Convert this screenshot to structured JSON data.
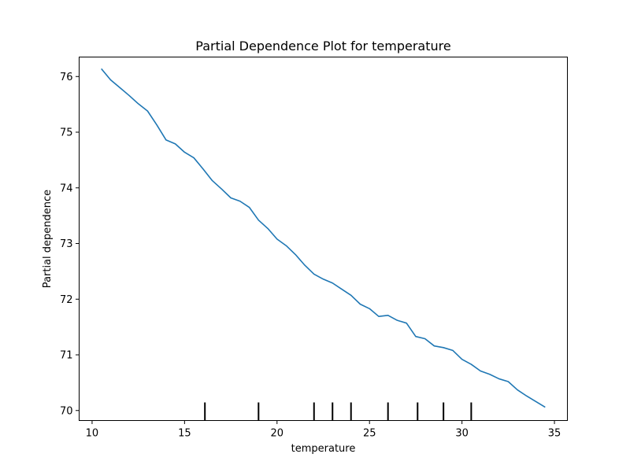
{
  "chart_data": {
    "type": "line",
    "title": "Partial Dependence Plot for temperature",
    "xlabel": "temperature",
    "ylabel": "Partial dependence",
    "xlim": [
      9.3,
      35.7
    ],
    "ylim": [
      69.82,
      76.35
    ],
    "x_ticks": [
      10,
      15,
      20,
      25,
      30,
      35
    ],
    "y_ticks": [
      70,
      71,
      72,
      73,
      74,
      75,
      76
    ],
    "x_tick_labels": [
      "10",
      "15",
      "20",
      "25",
      "30",
      "35"
    ],
    "y_tick_labels": [
      "70",
      "71",
      "72",
      "73",
      "74",
      "75",
      "76"
    ],
    "grid": false,
    "series": [
      {
        "color": "#1f77b4",
        "x": [
          10.5,
          11.0,
          11.5,
          12.0,
          12.5,
          13.0,
          13.5,
          14.0,
          14.5,
          15.0,
          15.5,
          16.0,
          16.5,
          17.0,
          17.5,
          18.0,
          18.5,
          19.0,
          19.5,
          20.0,
          20.5,
          21.0,
          21.5,
          22.0,
          22.5,
          23.0,
          23.5,
          24.0,
          24.5,
          25.0,
          25.5,
          26.0,
          26.5,
          27.0,
          27.5,
          28.0,
          28.5,
          29.0,
          29.5,
          30.0,
          30.5,
          31.0,
          31.5,
          32.0,
          32.5,
          33.0,
          33.5,
          34.0,
          34.5
        ],
        "y": [
          76.14,
          75.94,
          75.8,
          75.66,
          75.51,
          75.38,
          75.13,
          74.86,
          74.79,
          74.64,
          74.54,
          74.34,
          74.13,
          73.98,
          73.82,
          73.76,
          73.65,
          73.42,
          73.27,
          73.08,
          72.96,
          72.8,
          72.61,
          72.45,
          72.36,
          72.29,
          72.18,
          72.07,
          71.91,
          71.83,
          71.69,
          71.71,
          71.62,
          71.57,
          71.33,
          71.29,
          71.16,
          71.13,
          71.08,
          70.92,
          70.83,
          70.71,
          70.65,
          70.57,
          70.52,
          70.37,
          70.26,
          70.16,
          70.06
        ]
      }
    ],
    "rug": {
      "color": "#000000",
      "x": [
        16.1,
        19.0,
        22.0,
        23.0,
        24.0,
        26.0,
        27.6,
        29.0,
        30.5
      ]
    }
  }
}
